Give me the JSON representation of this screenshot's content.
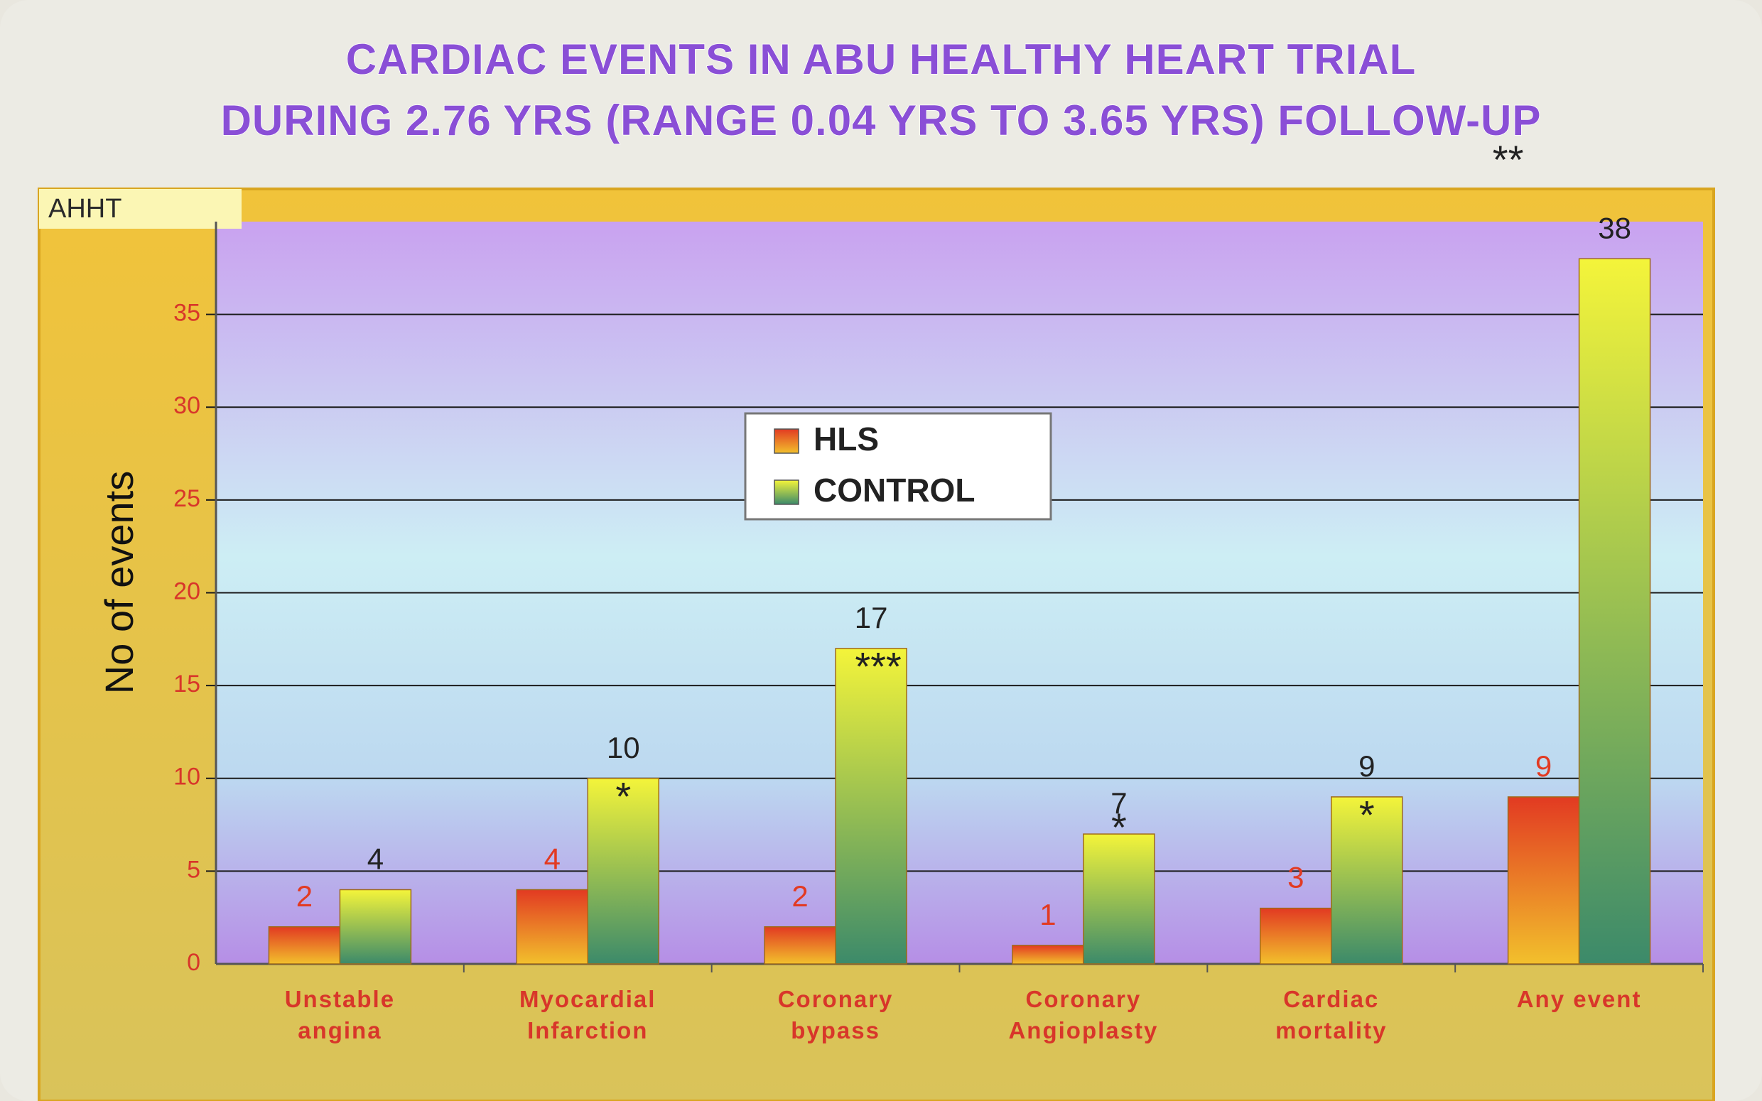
{
  "chart_data": {
    "type": "bar",
    "title": "CARDIAC EVENTS IN ABU HEALTHY HEART TRIAL",
    "subtitle": "DURING 2.76 YRS (RANGE 0.04 YRS TO 3.65 YRS)  FOLLOW-UP",
    "corner_label": "AHHT",
    "y_label": "No of events",
    "categories": [
      "Unstable\nangina",
      "Myocardial\nInfarction",
      "Coronary\nbypass",
      "Coronary\nAngioplasty",
      "Cardiac\nmortality",
      "Any event"
    ],
    "series": [
      {
        "name": "HLS",
        "color": "#e23a22",
        "values": [
          2,
          4,
          2,
          1,
          3,
          9
        ]
      },
      {
        "name": "CONTROL",
        "color": "#f4f43a",
        "values": [
          4,
          10,
          17,
          7,
          9,
          38
        ]
      }
    ],
    "significance": [
      null,
      "*",
      "***",
      "*",
      "*",
      "**"
    ],
    "ylim": [
      0,
      40
    ],
    "yticks": [
      0,
      5,
      10,
      15,
      20,
      25,
      30,
      35
    ],
    "grid": true
  }
}
